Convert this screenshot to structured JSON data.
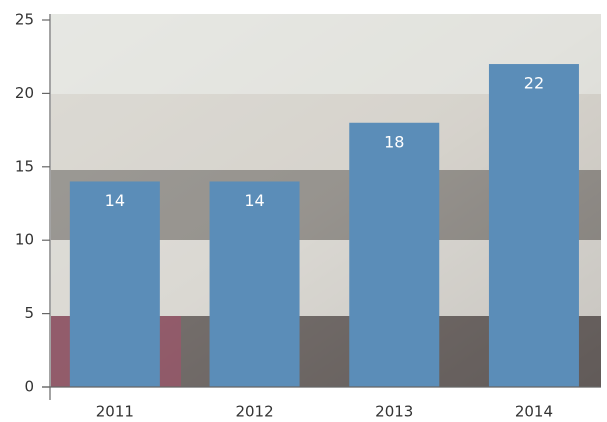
{
  "chart_data": {
    "type": "bar",
    "categories": [
      "2011",
      "2012",
      "2013",
      "2014"
    ],
    "values": [
      14,
      14,
      18,
      22
    ],
    "color": "#5b8db8",
    "ylim": [
      0,
      25
    ],
    "yticks": [
      0,
      5,
      10,
      15,
      20,
      25
    ]
  }
}
